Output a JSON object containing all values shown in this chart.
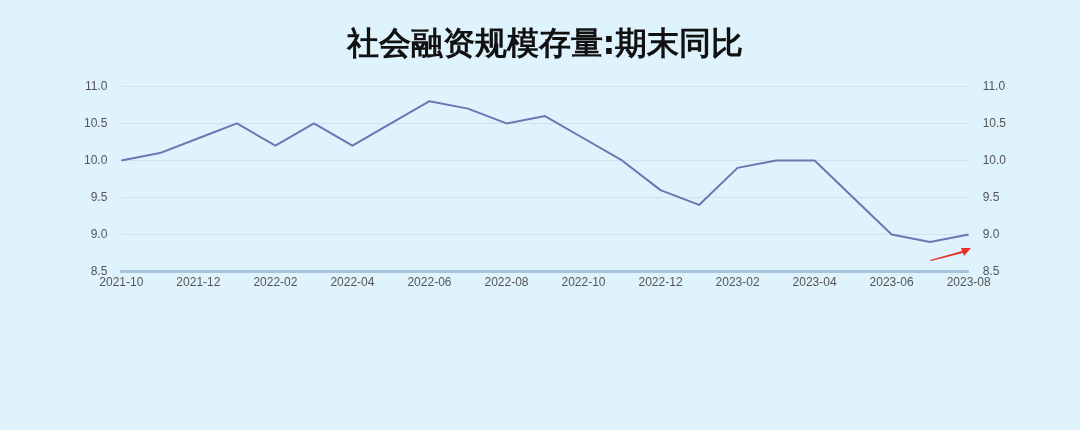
{
  "chart_data": {
    "type": "line",
    "title": "社会融资规模存量:期末同比",
    "categories": [
      "2021-10",
      null,
      "2021-12",
      null,
      "2022-02",
      null,
      "2022-04",
      null,
      "2022-06",
      null,
      "2022-08",
      null,
      "2022-10",
      null,
      "2022-12",
      null,
      "2023-02",
      null,
      "2023-04",
      null,
      "2023-06",
      null,
      "2023-08"
    ],
    "series": [
      {
        "color": "#6b76b2",
        "values": [
          10.0,
          10.1,
          10.3,
          10.5,
          10.2,
          10.5,
          10.2,
          10.5,
          10.8,
          10.7,
          10.5,
          10.6,
          10.3,
          10.0,
          9.6,
          9.4,
          9.9,
          10.0,
          10.0,
          9.5,
          9.0,
          8.9,
          9.0
        ]
      }
    ],
    "ylim": [
      8.5,
      11.0
    ],
    "yticks": [
      {
        "value": 8.5,
        "label": "8.5"
      },
      {
        "value": 9.0,
        "label": "9.0"
      },
      {
        "value": 9.5,
        "label": "9.5"
      },
      {
        "value": 10.0,
        "label": "10.0"
      },
      {
        "value": 10.5,
        "label": "10.5"
      },
      {
        "value": 11.0,
        "label": "11.0"
      }
    ],
    "y2lim": [
      8.5,
      11.0
    ],
    "y2ticks": [
      {
        "value": 8.5,
        "label": "8.5"
      },
      {
        "value": 9.0,
        "label": "9.0"
      },
      {
        "value": 9.5,
        "label": "9.5"
      },
      {
        "value": 10.0,
        "label": "10.0"
      },
      {
        "value": 10.5,
        "label": "10.5"
      },
      {
        "value": 11.0,
        "label": "11.0"
      }
    ],
    "grid": "y",
    "legend": false,
    "marker": "none",
    "line_style": "solid"
  }
}
